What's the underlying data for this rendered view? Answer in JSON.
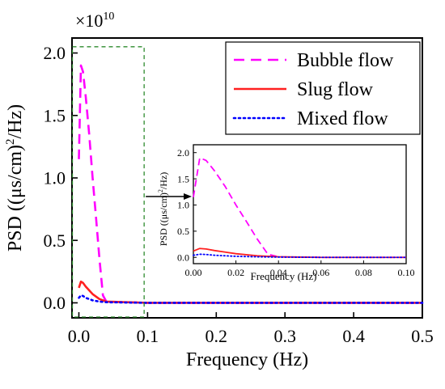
{
  "chart_data": [
    {
      "type": "line",
      "multiplier_label": "×10",
      "multiplier_exponent": "10",
      "xlabel": "Frequency (Hz)",
      "ylabel_prefix": "PSD ((μs/cm)",
      "ylabel_sup": "2",
      "ylabel_suffix": "/Hz)",
      "xlim": [
        -0.01,
        0.5
      ],
      "ylim": [
        -0.12,
        2.12
      ],
      "x_ticks": [
        0.0,
        0.1,
        0.2,
        0.3,
        0.4,
        0.5
      ],
      "x_tick_labels": [
        "0.0",
        "0.1",
        "0.2",
        "0.3",
        "0.4",
        "0.5"
      ],
      "y_ticks": [
        0.0,
        0.5,
        1.0,
        1.5,
        2.0
      ],
      "y_tick_labels": [
        "0.0",
        "0.5",
        "1.0",
        "1.5",
        "2.0"
      ],
      "grid": false,
      "legend_position": "top-right",
      "series": [
        {
          "name": "Bubble flow",
          "color": "#ff00ff",
          "style": "dashed",
          "x": [
            0.0,
            0.003,
            0.006,
            0.01,
            0.015,
            0.02,
            0.025,
            0.03,
            0.035,
            0.04,
            0.1,
            0.2,
            0.3,
            0.4,
            0.5
          ],
          "y": [
            1.15,
            1.9,
            1.85,
            1.65,
            1.35,
            1.0,
            0.68,
            0.35,
            0.06,
            0.01,
            0.0,
            0.0,
            0.0,
            0.0,
            0.0
          ]
        },
        {
          "name": "Slug flow",
          "color": "#ff2020",
          "style": "solid",
          "x": [
            0.0,
            0.003,
            0.006,
            0.01,
            0.015,
            0.02,
            0.03,
            0.04,
            0.1,
            0.2,
            0.3,
            0.4,
            0.5
          ],
          "y": [
            0.12,
            0.17,
            0.16,
            0.13,
            0.1,
            0.07,
            0.03,
            0.01,
            0.0,
            0.0,
            0.0,
            0.0,
            0.0
          ]
        },
        {
          "name": "Mixed flow",
          "color": "#0000ff",
          "style": "dotted",
          "x": [
            0.0,
            0.003,
            0.006,
            0.01,
            0.02,
            0.03,
            0.04,
            0.1,
            0.2,
            0.3,
            0.4,
            0.5
          ],
          "y": [
            0.04,
            0.06,
            0.055,
            0.04,
            0.02,
            0.01,
            0.005,
            0.0,
            0.0,
            0.0,
            0.0,
            0.0
          ]
        }
      ]
    },
    {
      "type": "line",
      "xlabel": "Frequency (Hz)",
      "ylabel_prefix": "PSD ((μs/cm)",
      "ylabel_sup": "2",
      "ylabel_suffix": "/Hz)",
      "xlim": [
        0.0,
        0.1
      ],
      "ylim": [
        -0.12,
        2.15
      ],
      "x_ticks": [
        0.0,
        0.02,
        0.04,
        0.06,
        0.08,
        0.1
      ],
      "x_tick_labels": [
        "0.00",
        "0.02",
        "0.04",
        "0.06",
        "0.08",
        "0.10"
      ],
      "y_ticks": [
        0.0,
        0.5,
        1.0,
        1.5,
        2.0
      ],
      "y_tick_labels": [
        "0.0",
        "0.5",
        "1.0",
        "1.5",
        "2.0"
      ],
      "grid": false,
      "series": [
        {
          "name": "Bubble flow",
          "color": "#ff00ff",
          "style": "dashed",
          "x": [
            0.0,
            0.003,
            0.006,
            0.01,
            0.015,
            0.02,
            0.025,
            0.03,
            0.035,
            0.04,
            0.06,
            0.08,
            0.1
          ],
          "y": [
            1.15,
            1.9,
            1.85,
            1.65,
            1.35,
            1.0,
            0.68,
            0.35,
            0.06,
            0.01,
            0.0,
            0.0,
            0.0
          ]
        },
        {
          "name": "Slug flow",
          "color": "#ff2020",
          "style": "solid",
          "x": [
            0.0,
            0.003,
            0.006,
            0.01,
            0.015,
            0.02,
            0.03,
            0.04,
            0.06,
            0.08,
            0.1
          ],
          "y": [
            0.12,
            0.17,
            0.16,
            0.13,
            0.1,
            0.07,
            0.03,
            0.01,
            0.0,
            0.0,
            0.0
          ]
        },
        {
          "name": "Mixed flow",
          "color": "#0000ff",
          "style": "dotted",
          "x": [
            0.0,
            0.003,
            0.006,
            0.01,
            0.02,
            0.03,
            0.04,
            0.06,
            0.08,
            0.1
          ],
          "y": [
            0.04,
            0.06,
            0.055,
            0.04,
            0.02,
            0.01,
            0.005,
            0.0,
            0.0,
            0.0
          ]
        }
      ]
    }
  ],
  "zoom_region": {
    "x_range": [
      -0.01,
      0.095
    ],
    "y_range": [
      -0.12,
      2.05
    ],
    "color": "#2e8b2e"
  }
}
